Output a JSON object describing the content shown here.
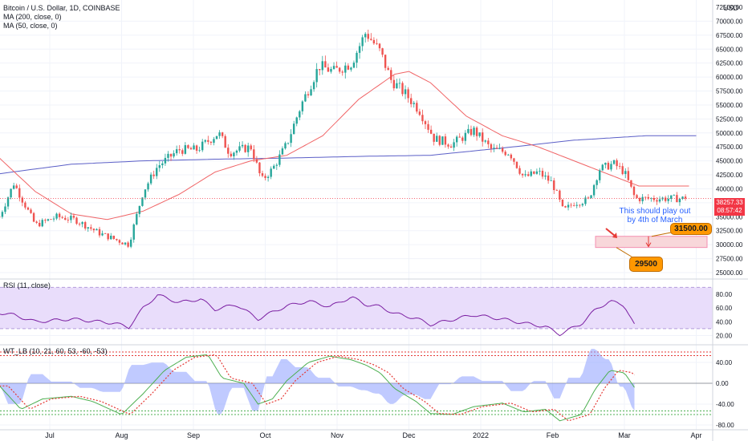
{
  "legend": {
    "title": "Bitcoin / U.S. Dollar, 1D, COINBASE",
    "ma200": "MA (200, close, 0)",
    "ma50": "MA (50, close, 0)"
  },
  "axis_unit": "USD",
  "price_tag": {
    "price": "38257.33",
    "countdown": "08:57:42"
  },
  "annotations": {
    "note_line1": "This should play out",
    "note_line2": "by 4th of March",
    "target_high": "31500.00",
    "target_low": "29500"
  },
  "rsi_label": "RSI (11, close)",
  "wt_label": "WT_LB (10, 21, 60, 53, -60, -53)",
  "colors": {
    "up": "#26a69a",
    "down": "#ef5350",
    "ma200": "#5b5fc7",
    "ma50": "#f06466",
    "rsi": "#7b1fa2",
    "rsi_band": "#e9ddfb",
    "wt1": "#4caf50",
    "wt2": "#e53935",
    "wt_hist": "#8c9eff",
    "callout": "#ff9800",
    "zone": "#f8d7da",
    "tag": "#f23645"
  },
  "chart_data": [
    {
      "type": "candlestick",
      "title": "Bitcoin / U.S. Dollar, 1D, COINBASE",
      "x_tick_labels": [
        "Jul",
        "Aug",
        "Sep",
        "Oct",
        "Nov",
        "Dec",
        "2022",
        "Feb",
        "Mar",
        "Apr"
      ],
      "y_tick_labels": [
        "72500.00",
        "70000.00",
        "67500.00",
        "65000.00",
        "62500.00",
        "60000.00",
        "57500.00",
        "55000.00",
        "52500.00",
        "50000.00",
        "47500.00",
        "45000.00",
        "42500.00",
        "40000.00",
        "37500.00",
        "35000.00",
        "32500.00",
        "30000.00",
        "27500.00",
        "25000.00"
      ],
      "ylim": [
        25000,
        73000
      ],
      "close_anchors": [
        {
          "month_pos": 0.0,
          "close": 35000
        },
        {
          "month_pos": 0.2,
          "close": 41000
        },
        {
          "month_pos": 0.5,
          "close": 33500
        },
        {
          "month_pos": 0.8,
          "close": 35000
        },
        {
          "month_pos": 1.05,
          "close": 34500
        },
        {
          "month_pos": 1.4,
          "close": 32000
        },
        {
          "month_pos": 1.6,
          "close": 31000
        },
        {
          "month_pos": 1.8,
          "close": 30000
        },
        {
          "month_pos": 2.0,
          "close": 39500
        },
        {
          "month_pos": 2.2,
          "close": 44000
        },
        {
          "month_pos": 2.5,
          "close": 47000
        },
        {
          "month_pos": 2.75,
          "close": 47000
        },
        {
          "month_pos": 3.05,
          "close": 50000
        },
        {
          "month_pos": 3.2,
          "close": 46500
        },
        {
          "month_pos": 3.5,
          "close": 47500
        },
        {
          "month_pos": 3.65,
          "close": 41500
        },
        {
          "month_pos": 3.8,
          "close": 43500
        },
        {
          "month_pos": 4.0,
          "close": 48000
        },
        {
          "month_pos": 4.2,
          "close": 55000
        },
        {
          "month_pos": 4.45,
          "close": 62000
        },
        {
          "month_pos": 4.65,
          "close": 61000
        },
        {
          "month_pos": 4.9,
          "close": 62500
        },
        {
          "month_pos": 5.1,
          "close": 68000
        },
        {
          "month_pos": 5.3,
          "close": 64500
        },
        {
          "month_pos": 5.45,
          "close": 59500
        },
        {
          "month_pos": 5.65,
          "close": 57000
        },
        {
          "month_pos": 5.85,
          "close": 54000
        },
        {
          "month_pos": 6.05,
          "close": 49000
        },
        {
          "month_pos": 6.3,
          "close": 48000
        },
        {
          "month_pos": 6.6,
          "close": 50500
        },
        {
          "month_pos": 6.85,
          "close": 47000
        },
        {
          "month_pos": 7.1,
          "close": 46500
        },
        {
          "month_pos": 7.3,
          "close": 42000
        },
        {
          "month_pos": 7.5,
          "close": 43000
        },
        {
          "month_pos": 7.7,
          "close": 41000
        },
        {
          "month_pos": 7.85,
          "close": 36000
        },
        {
          "month_pos": 8.0,
          "close": 37500
        },
        {
          "month_pos": 8.2,
          "close": 38000
        },
        {
          "month_pos": 8.35,
          "close": 43500
        },
        {
          "month_pos": 8.55,
          "close": 44500
        },
        {
          "month_pos": 8.7,
          "close": 43000
        },
        {
          "month_pos": 8.85,
          "close": 38257
        }
      ],
      "ma200_anchors": [
        [
          0.0,
          42700
        ],
        [
          1.0,
          44400
        ],
        [
          2.0,
          45000
        ],
        [
          3.0,
          45300
        ],
        [
          4.0,
          45500
        ],
        [
          5.0,
          45800
        ],
        [
          6.0,
          46000
        ],
        [
          7.0,
          47300
        ],
        [
          8.0,
          48700
        ],
        [
          9.0,
          49500
        ]
      ],
      "ma50_anchors": [
        [
          0.0,
          45500
        ],
        [
          0.5,
          39500
        ],
        [
          1.0,
          35500
        ],
        [
          1.5,
          34500
        ],
        [
          2.0,
          36000
        ],
        [
          2.5,
          39000
        ],
        [
          3.0,
          43000
        ],
        [
          3.5,
          45000
        ],
        [
          4.0,
          46000
        ],
        [
          4.5,
          49500
        ],
        [
          5.0,
          56000
        ],
        [
          5.5,
          60500
        ],
        [
          5.7,
          61000
        ],
        [
          6.0,
          59000
        ],
        [
          6.5,
          53000
        ],
        [
          7.0,
          49500
        ],
        [
          7.5,
          47500
        ],
        [
          8.0,
          45000
        ],
        [
          8.5,
          42500
        ],
        [
          8.9,
          40500
        ]
      ],
      "last_price": 38257.33,
      "projection_zone": [
        29500,
        31500
      ]
    },
    {
      "type": "line",
      "title": "RSI (11, close)",
      "y_tick_labels": [
        "80.00",
        "60.00",
        "40.00",
        "20.00"
      ],
      "ylim": [
        10,
        98
      ],
      "band": [
        30,
        90
      ],
      "anchors": [
        [
          0.0,
          53
        ],
        [
          0.2,
          50
        ],
        [
          0.5,
          40
        ],
        [
          1.0,
          44
        ],
        [
          1.3,
          41
        ],
        [
          1.6,
          38
        ],
        [
          1.8,
          32
        ],
        [
          2.0,
          60
        ],
        [
          2.2,
          79
        ],
        [
          2.5,
          68
        ],
        [
          2.8,
          73
        ],
        [
          3.0,
          58
        ],
        [
          3.3,
          65
        ],
        [
          3.6,
          44
        ],
        [
          3.8,
          54
        ],
        [
          4.0,
          63
        ],
        [
          4.3,
          70
        ],
        [
          4.6,
          62
        ],
        [
          4.9,
          76
        ],
        [
          5.1,
          65
        ],
        [
          5.3,
          62
        ],
        [
          5.5,
          52
        ],
        [
          5.8,
          45
        ],
        [
          6.0,
          36
        ],
        [
          6.3,
          43
        ],
        [
          6.6,
          50
        ],
        [
          7.0,
          44
        ],
        [
          7.3,
          38
        ],
        [
          7.6,
          33
        ],
        [
          7.8,
          22
        ],
        [
          8.1,
          37
        ],
        [
          8.3,
          58
        ],
        [
          8.5,
          70
        ],
        [
          8.7,
          64
        ],
        [
          8.85,
          33
        ]
      ]
    },
    {
      "type": "line",
      "title": "WT_LB (10, 21, 60, 53, -60, -53)",
      "y_tick_labels": [
        "40.00",
        "0.00",
        "-40.00",
        "-80.00"
      ],
      "ylim": [
        -86,
        70
      ],
      "levels": [
        60,
        53,
        -60,
        -53
      ],
      "wt1_anchors": [
        [
          0.0,
          -5
        ],
        [
          0.3,
          -50
        ],
        [
          0.6,
          -30
        ],
        [
          1.0,
          -25
        ],
        [
          1.3,
          -35
        ],
        [
          1.7,
          -60
        ],
        [
          2.0,
          -20
        ],
        [
          2.3,
          25
        ],
        [
          2.6,
          50
        ],
        [
          2.9,
          55
        ],
        [
          3.1,
          10
        ],
        [
          3.4,
          0
        ],
        [
          3.6,
          -40
        ],
        [
          3.8,
          -30
        ],
        [
          4.0,
          5
        ],
        [
          4.3,
          40
        ],
        [
          4.6,
          52
        ],
        [
          4.9,
          45
        ],
        [
          5.1,
          35
        ],
        [
          5.3,
          20
        ],
        [
          5.5,
          -10
        ],
        [
          5.8,
          -35
        ],
        [
          6.0,
          -58
        ],
        [
          6.3,
          -60
        ],
        [
          6.6,
          -45
        ],
        [
          7.0,
          -38
        ],
        [
          7.3,
          -55
        ],
        [
          7.6,
          -50
        ],
        [
          7.8,
          -72
        ],
        [
          8.1,
          -60
        ],
        [
          8.3,
          -10
        ],
        [
          8.5,
          25
        ],
        [
          8.7,
          20
        ],
        [
          8.85,
          -10
        ]
      ],
      "wt2_lag": 0.12
    }
  ]
}
